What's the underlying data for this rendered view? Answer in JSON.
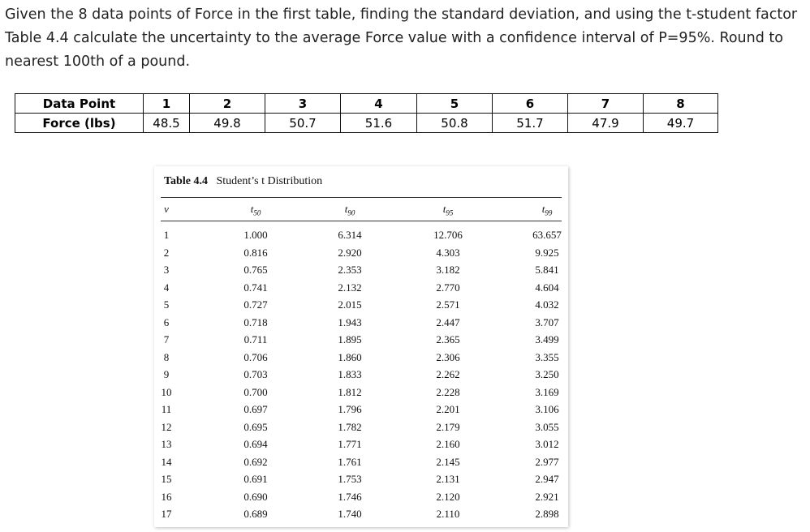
{
  "question": "Given the 8 data points of Force in the first table, finding the standard deviation, and using the t-student factor Table 4.4 calculate the uncertainty to the average Force value with a confidence interval of P=95%. Round to nearest 100th of a pound.",
  "data_table": {
    "rows": [
      [
        "Data Point",
        "1",
        "2",
        "3",
        "4",
        "5",
        "6",
        "7",
        "8"
      ],
      [
        "Force (lbs)",
        "48.5",
        "49.8",
        "50.7",
        "51.6",
        "50.8",
        "51.7",
        "47.9",
        "49.7"
      ]
    ]
  },
  "t_table": {
    "title": "Table 4.4",
    "caption": "Student’s t Distribution",
    "headers": [
      {
        "symbol": "ν"
      },
      {
        "symbol": "t",
        "sub": "50"
      },
      {
        "symbol": "t",
        "sub": "90"
      },
      {
        "symbol": "t",
        "sub": "95"
      },
      {
        "symbol": "t",
        "sub": "99"
      }
    ],
    "rows": [
      [
        "1",
        "1.000",
        "6.314",
        "12.706",
        "63.657"
      ],
      [
        "2",
        "0.816",
        "2.920",
        "4.303",
        "9.925"
      ],
      [
        "3",
        "0.765",
        "2.353",
        "3.182",
        "5.841"
      ],
      [
        "4",
        "0.741",
        "2.132",
        "2.770",
        "4.604"
      ],
      [
        "5",
        "0.727",
        "2.015",
        "2.571",
        "4.032"
      ],
      [
        "6",
        "0.718",
        "1.943",
        "2.447",
        "3.707"
      ],
      [
        "7",
        "0.711",
        "1.895",
        "2.365",
        "3.499"
      ],
      [
        "8",
        "0.706",
        "1.860",
        "2.306",
        "3.355"
      ],
      [
        "9",
        "0.703",
        "1.833",
        "2.262",
        "3.250"
      ],
      [
        "10",
        "0.700",
        "1.812",
        "2.228",
        "3.169"
      ],
      [
        "11",
        "0.697",
        "1.796",
        "2.201",
        "3.106"
      ],
      [
        "12",
        "0.695",
        "1.782",
        "2.179",
        "3.055"
      ],
      [
        "13",
        "0.694",
        "1.771",
        "2.160",
        "3.012"
      ],
      [
        "14",
        "0.692",
        "1.761",
        "2.145",
        "2.977"
      ],
      [
        "15",
        "0.691",
        "1.753",
        "2.131",
        "2.947"
      ],
      [
        "16",
        "0.690",
        "1.746",
        "2.120",
        "2.921"
      ],
      [
        "17",
        "0.689",
        "1.740",
        "2.110",
        "2.898"
      ]
    ]
  }
}
